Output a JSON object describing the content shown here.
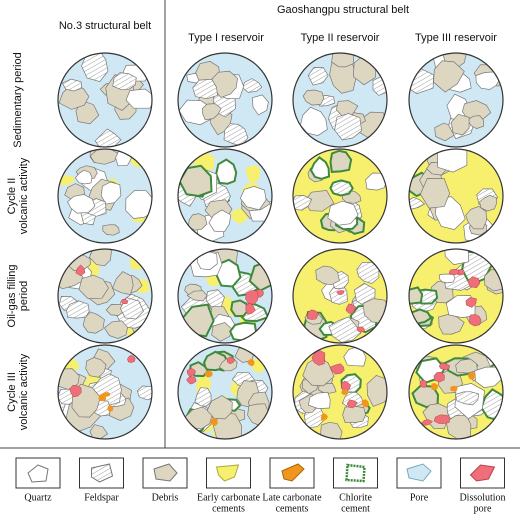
{
  "header": {
    "left_column": "No.3 structural belt",
    "group_title": "Gaoshangpu structural belt",
    "columns": [
      "Type I reservoir",
      "Type II reservoir",
      "Type III reservoir"
    ]
  },
  "rows": [
    [
      "Sedimentary period"
    ],
    [
      "Cycle II",
      "volcanic activity"
    ],
    [
      "Oil-gas filling",
      "period"
    ],
    [
      "Cycle III",
      "volcanic activity"
    ]
  ],
  "legend": [
    [
      "Quartz"
    ],
    [
      "Feldspar"
    ],
    [
      "Debris"
    ],
    [
      "Early carbonate",
      "cements"
    ],
    [
      "Late carbonate",
      "cements"
    ],
    [
      "Chlorite",
      "cement"
    ],
    [
      "Pore"
    ],
    [
      "Dissolution",
      "pore"
    ]
  ]
}
